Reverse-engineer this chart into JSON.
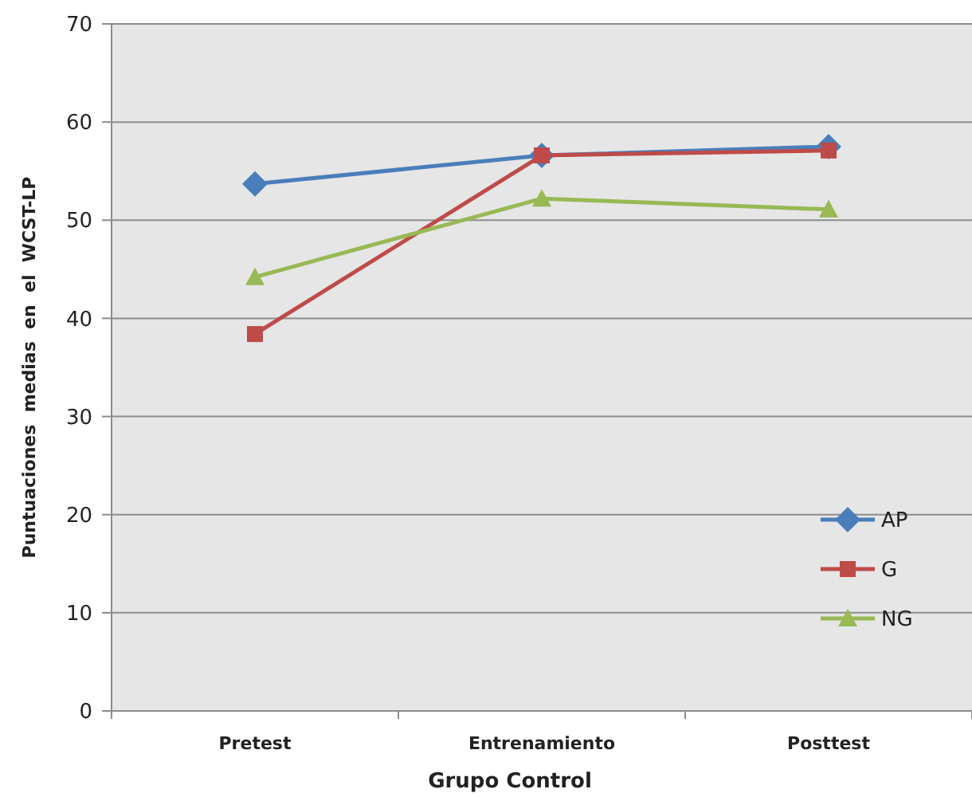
{
  "chart_data": {
    "type": "line",
    "xlabel": "Grupo Control",
    "ylabel": "Puntuaciones  medias  en  el  WCST-LP",
    "categories": [
      "Pretest",
      "Entrenamiento",
      "Posttest"
    ],
    "series": [
      {
        "name": "AP",
        "color": "#4a7ebb",
        "marker": "diamond",
        "values": [
          53.7,
          56.6,
          57.5
        ]
      },
      {
        "name": "G",
        "color": "#be4b48",
        "marker": "square",
        "values": [
          38.4,
          56.6,
          57.1
        ]
      },
      {
        "name": "NG",
        "color": "#98b954",
        "marker": "triangle",
        "values": [
          44.2,
          52.2,
          51.1
        ]
      }
    ],
    "ylim": [
      0,
      70
    ],
    "yticks": [
      0,
      10,
      20,
      30,
      40,
      50,
      60,
      70
    ],
    "grid": "y",
    "legend": "bottom right"
  }
}
